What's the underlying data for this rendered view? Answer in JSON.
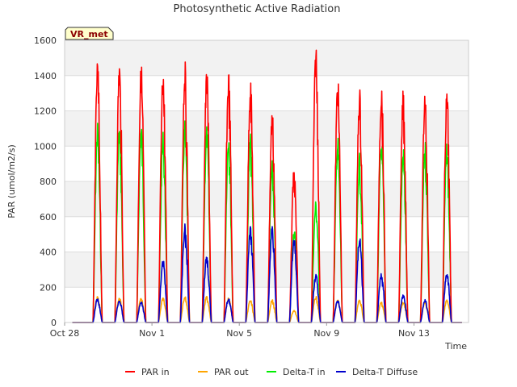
{
  "chart_data": {
    "type": "line",
    "title": "Photosynthetic Active Radiation",
    "site_label": "VR_met",
    "xlabel": "Time",
    "ylabel": "PAR (umol/m2/s)",
    "ylim": [
      0,
      1600
    ],
    "yticks": [
      0,
      200,
      400,
      600,
      800,
      1000,
      1200,
      1400,
      1600
    ],
    "xlim": [
      "2023-10-28",
      "2023-11-15T12:00"
    ],
    "xticks": [
      {
        "date": "2023-10-28",
        "label": "Oct 28"
      },
      {
        "date": "2023-11-01",
        "label": "Nov 1"
      },
      {
        "date": "2023-11-05",
        "label": "Nov 5"
      },
      {
        "date": "2023-11-09",
        "label": "Nov 9"
      },
      {
        "date": "2023-11-13",
        "label": "Nov 13"
      }
    ],
    "grid": true,
    "legend": "bottom",
    "days": [
      "2023-10-28",
      "2023-10-29",
      "2023-10-30",
      "2023-10-31",
      "2023-11-01",
      "2023-11-02",
      "2023-11-03",
      "2023-11-04",
      "2023-11-05",
      "2023-11-06",
      "2023-11-07",
      "2023-11-08",
      "2023-11-09",
      "2023-11-10",
      "2023-11-11",
      "2023-11-12",
      "2023-11-13",
      "2023-11-14",
      "2023-11-15"
    ],
    "series": [
      {
        "name": "PAR in",
        "color": "#ff0000",
        "daily_peak": [
          0,
          1500,
          1500,
          1480,
          1460,
          1490,
          1440,
          1440,
          1400,
          1225,
          880,
          1590,
          1400,
          1340,
          1360,
          1330,
          1350,
          1320,
          0
        ]
      },
      {
        "name": "PAR out",
        "color": "#ffa500",
        "daily_peak": [
          0,
          150,
          140,
          140,
          140,
          150,
          150,
          140,
          130,
          130,
          70,
          150,
          130,
          130,
          120,
          120,
          120,
          130,
          0
        ]
      },
      {
        "name": "Delta-T in",
        "color": "#00ee00",
        "daily_peak": [
          0,
          1140,
          1130,
          1140,
          1090,
          1150,
          1120,
          1100,
          1080,
          920,
          540,
          700,
          1060,
          960,
          1050,
          1000,
          1040,
          1020,
          0
        ]
      },
      {
        "name": "Delta-T Diffuse",
        "color": "#0000cc",
        "daily_peak": [
          0,
          140,
          130,
          120,
          360,
          560,
          390,
          140,
          550,
          560,
          480,
          280,
          130,
          490,
          280,
          160,
          130,
          290,
          0
        ]
      }
    ]
  }
}
